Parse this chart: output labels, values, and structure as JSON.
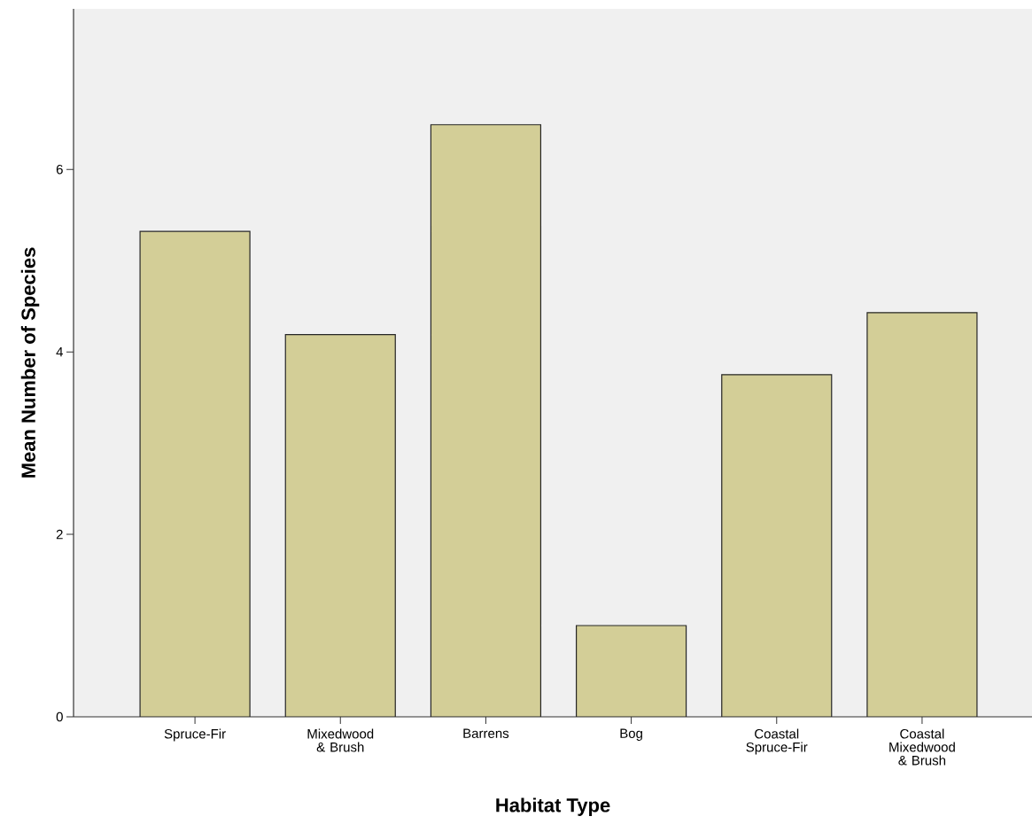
{
  "chart_data": {
    "type": "bar",
    "xlabel": "Habitat Type",
    "ylabel": "Mean Number of Species",
    "categories": [
      "Spruce-Fir",
      "Mixedwood & Brush",
      "Barrens",
      "Bog",
      "Coastal Spruce-Fir",
      "Coastal Mixedwood & Brush"
    ],
    "values": [
      5.32,
      4.19,
      6.49,
      1.0,
      3.75,
      4.43
    ],
    "color": "#d3ce97",
    "ylim": [
      0,
      7.76
    ],
    "yticks": [
      0,
      2,
      4,
      6
    ],
    "grid": false
  }
}
